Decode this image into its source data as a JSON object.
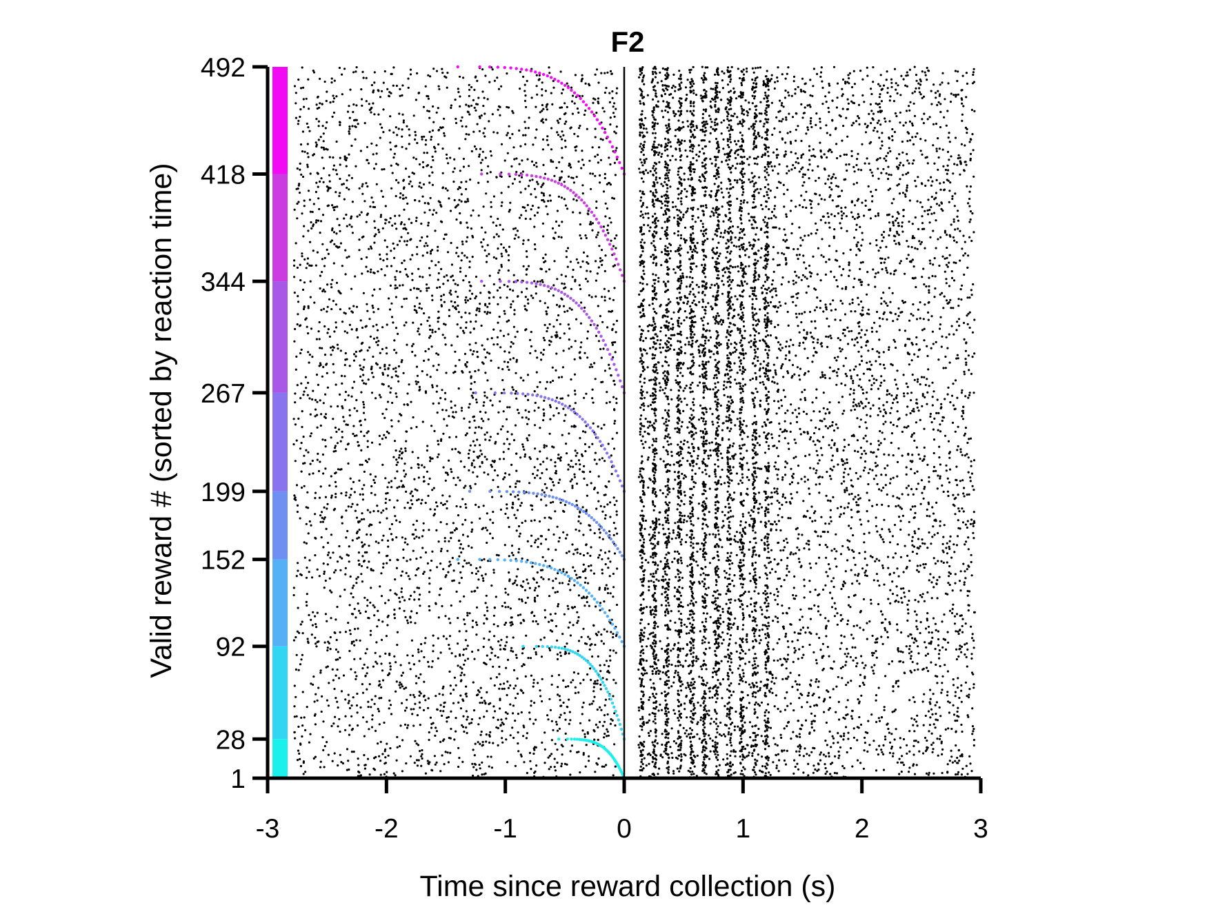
{
  "chart_data": {
    "type": "scatter",
    "subtype": "spike-raster",
    "title": "F2",
    "xlabel": "Time since reward collection (s)",
    "ylabel": "Valid reward # (sorted by reaction time)",
    "xlim": [
      -3,
      3
    ],
    "ylim": [
      1,
      492
    ],
    "x_ticks": [
      -3,
      -2,
      -1,
      0,
      1,
      2,
      3
    ],
    "x_tick_labels": [
      "-3",
      "-2",
      "-1",
      "0",
      "1",
      "2",
      "3"
    ],
    "y_ticks": [
      1,
      28,
      92,
      152,
      199,
      267,
      344,
      418,
      492
    ],
    "y_tick_labels": [
      "1",
      "28",
      "92",
      "152",
      "199",
      "267",
      "344",
      "418",
      "492"
    ],
    "grid": false,
    "legend": "none",
    "event_line_x": 0,
    "group_bar": {
      "boundaries": [
        1,
        28,
        92,
        152,
        199,
        267,
        344,
        418,
        492
      ],
      "colors": [
        "#1AF0EC",
        "#33D6F2",
        "#55B0F5",
        "#6E90F2",
        "#8A73EE",
        "#A857E6",
        "#CC3BE2",
        "#F20AF5"
      ]
    },
    "reaction_time_curves": [
      {
        "trials": [
          1,
          28
        ],
        "x_start": -0.55,
        "x_end": 0,
        "color": "#1AF0EC"
      },
      {
        "trials": [
          28,
          92
        ],
        "x_start": -0.85,
        "x_end": 0,
        "color": "#33D6F2"
      },
      {
        "trials": [
          92,
          152
        ],
        "x_start": -1.4,
        "x_end": 0,
        "color": "#55B0F5"
      },
      {
        "trials": [
          152,
          199
        ],
        "x_start": -1.3,
        "x_end": 0,
        "color": "#6E90F2"
      },
      {
        "trials": [
          199,
          267
        ],
        "x_start": -1.25,
        "x_end": 0,
        "color": "#8A73EE"
      },
      {
        "trials": [
          267,
          344
        ],
        "x_start": -1.2,
        "x_end": 0,
        "color": "#A857E6"
      },
      {
        "trials": [
          344,
          418
        ],
        "x_start": -1.2,
        "x_end": 0,
        "color": "#CC3BE2"
      },
      {
        "trials": [
          418,
          492
        ],
        "x_start": -1.4,
        "x_end": 0,
        "color": "#F20AF5"
      }
    ],
    "spike_color": "#000000"
  }
}
